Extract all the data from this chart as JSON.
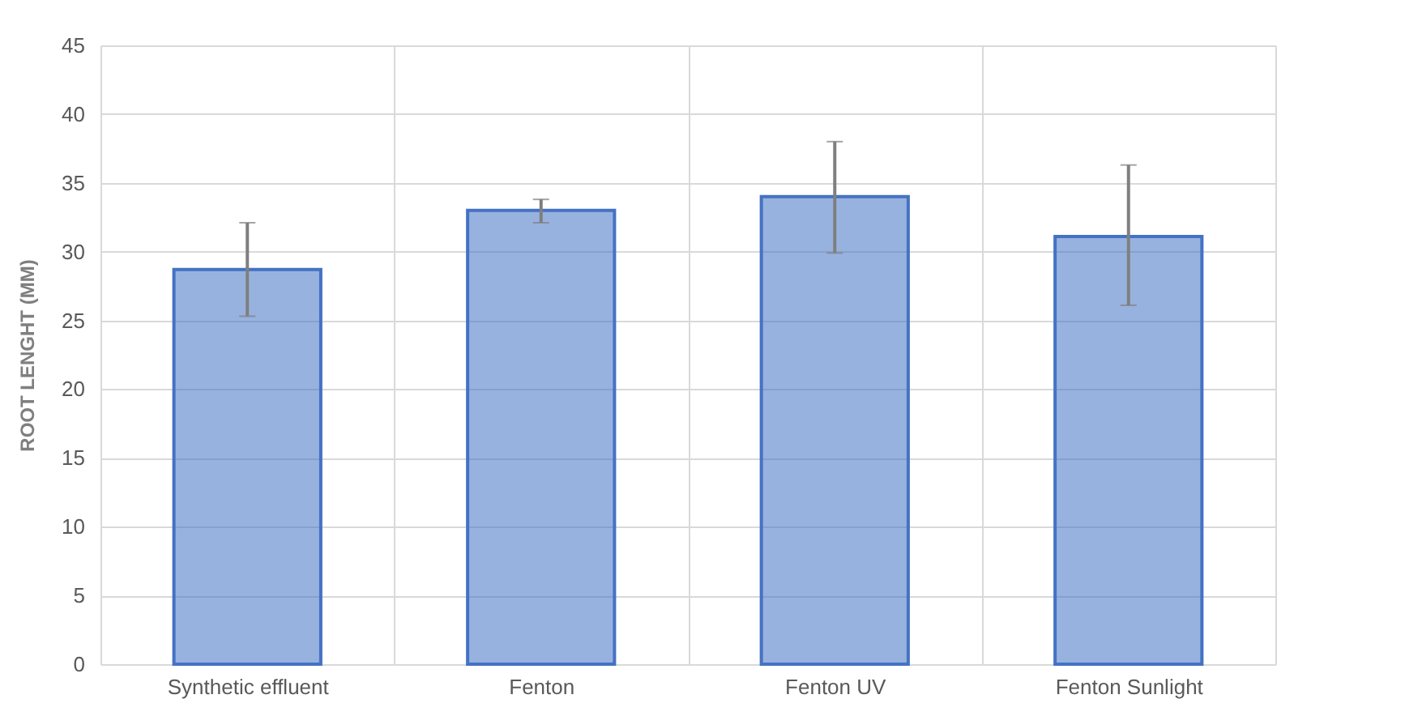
{
  "chart_data": {
    "type": "bar",
    "ylabel": "ROOT LENGHT (MM)",
    "categories": [
      "Synthetic effluent",
      "Fenton",
      "Fenton UV",
      "Fenton Sunlight"
    ],
    "values": [
      28.7,
      33,
      34,
      31.1
    ],
    "errors": [
      [
        25.3,
        32.1
      ],
      [
        32.1,
        33.8
      ],
      [
        29.9,
        38
      ],
      [
        26.1,
        36.3
      ]
    ],
    "color": "#4472c4",
    "ylim": [
      0,
      45
    ],
    "yticks": [
      0,
      5,
      10,
      15,
      20,
      25,
      30,
      35,
      40,
      45
    ],
    "grid": true
  }
}
